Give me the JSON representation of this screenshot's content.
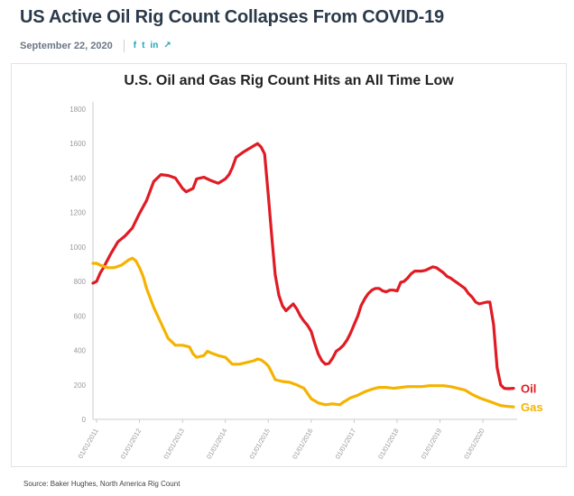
{
  "article": {
    "headline": "US Active Oil Rig Count Collapses From COVID-19",
    "date": "September 22, 2020",
    "share": [
      {
        "icon": "facebook-icon",
        "glyph": "f"
      },
      {
        "icon": "twitter-icon",
        "glyph": "t"
      },
      {
        "icon": "linkedin-icon",
        "glyph": "in"
      },
      {
        "icon": "link-icon",
        "glyph": "↗"
      }
    ],
    "accent_color": "#1aa9b8",
    "source": "Source: Baker Hughes, North America Rig Count"
  },
  "chart_data": {
    "type": "line",
    "title": "U.S. Oil and Gas Rig Count Hits an All Time Low",
    "xlabel": "",
    "ylabel": "",
    "ylim": [
      0,
      1800
    ],
    "yticks": [
      0,
      200,
      400,
      600,
      800,
      1000,
      1200,
      1400,
      1600,
      1800
    ],
    "xlim": [
      "2010-12-01",
      "2020-09-18"
    ],
    "xticks": [
      {
        "date": "2011-01-01",
        "label": "01/01/2011"
      },
      {
        "date": "2012-01-01",
        "label": "01/01/2012"
      },
      {
        "date": "2013-01-01",
        "label": "01/01/2013"
      },
      {
        "date": "2014-01-01",
        "label": "01/01/2014"
      },
      {
        "date": "2015-01-01",
        "label": "01/01/2015"
      },
      {
        "date": "2016-01-01",
        "label": "01/01/2016"
      },
      {
        "date": "2017-01-01",
        "label": "01/01/2017"
      },
      {
        "date": "2018-01-01",
        "label": "01/01/2018"
      },
      {
        "date": "2019-01-01",
        "label": "01/01/2019"
      },
      {
        "date": "2020-01-01",
        "label": "01/01/2020"
      }
    ],
    "grid": false,
    "legend": "end-of-line labels",
    "series": [
      {
        "name": "Oil",
        "color": "#e01b24",
        "points": [
          [
            "2010-12-01",
            790
          ],
          [
            "2011-01-01",
            800
          ],
          [
            "2011-02-01",
            850
          ],
          [
            "2011-03-01",
            880
          ],
          [
            "2011-05-01",
            960
          ],
          [
            "2011-07-01",
            1030
          ],
          [
            "2011-09-01",
            1065
          ],
          [
            "2011-11-01",
            1110
          ],
          [
            "2012-01-01",
            1195
          ],
          [
            "2012-03-01",
            1270
          ],
          [
            "2012-05-01",
            1380
          ],
          [
            "2012-07-01",
            1420
          ],
          [
            "2012-09-01",
            1415
          ],
          [
            "2012-11-01",
            1400
          ],
          [
            "2013-01-01",
            1340
          ],
          [
            "2013-02-01",
            1320
          ],
          [
            "2013-04-01",
            1340
          ],
          [
            "2013-05-01",
            1395
          ],
          [
            "2013-07-01",
            1405
          ],
          [
            "2013-09-01",
            1385
          ],
          [
            "2013-11-01",
            1370
          ],
          [
            "2014-01-01",
            1395
          ],
          [
            "2014-02-01",
            1420
          ],
          [
            "2014-03-01",
            1460
          ],
          [
            "2014-04-01",
            1520
          ],
          [
            "2014-06-01",
            1550
          ],
          [
            "2014-08-01",
            1575
          ],
          [
            "2014-10-01",
            1600
          ],
          [
            "2014-11-01",
            1580
          ],
          [
            "2014-12-01",
            1540
          ],
          [
            "2015-01-01",
            1300
          ],
          [
            "2015-02-01",
            1050
          ],
          [
            "2015-03-01",
            840
          ],
          [
            "2015-04-01",
            720
          ],
          [
            "2015-05-01",
            660
          ],
          [
            "2015-06-01",
            630
          ],
          [
            "2015-07-01",
            650
          ],
          [
            "2015-08-01",
            670
          ],
          [
            "2015-09-01",
            640
          ],
          [
            "2015-10-01",
            600
          ],
          [
            "2015-11-01",
            570
          ],
          [
            "2015-12-01",
            545
          ],
          [
            "2016-01-01",
            510
          ],
          [
            "2016-02-01",
            440
          ],
          [
            "2016-03-01",
            380
          ],
          [
            "2016-04-01",
            340
          ],
          [
            "2016-05-01",
            320
          ],
          [
            "2016-06-01",
            325
          ],
          [
            "2016-07-01",
            355
          ],
          [
            "2016-08-01",
            395
          ],
          [
            "2016-09-01",
            410
          ],
          [
            "2016-10-01",
            430
          ],
          [
            "2016-11-01",
            460
          ],
          [
            "2016-12-01",
            500
          ],
          [
            "2017-01-01",
            550
          ],
          [
            "2017-02-01",
            600
          ],
          [
            "2017-03-01",
            660
          ],
          [
            "2017-04-01",
            700
          ],
          [
            "2017-05-01",
            730
          ],
          [
            "2017-06-01",
            750
          ],
          [
            "2017-07-01",
            760
          ],
          [
            "2017-08-01",
            760
          ],
          [
            "2017-09-01",
            745
          ],
          [
            "2017-10-01",
            740
          ],
          [
            "2017-11-01",
            750
          ],
          [
            "2017-12-01",
            750
          ],
          [
            "2018-01-01",
            745
          ],
          [
            "2018-02-01",
            795
          ],
          [
            "2018-03-01",
            800
          ],
          [
            "2018-04-01",
            820
          ],
          [
            "2018-05-01",
            845
          ],
          [
            "2018-06-01",
            860
          ],
          [
            "2018-07-01",
            860
          ],
          [
            "2018-08-01",
            860
          ],
          [
            "2018-09-01",
            865
          ],
          [
            "2018-10-01",
            875
          ],
          [
            "2018-11-01",
            885
          ],
          [
            "2018-12-01",
            880
          ],
          [
            "2019-01-01",
            865
          ],
          [
            "2019-02-01",
            850
          ],
          [
            "2019-03-01",
            830
          ],
          [
            "2019-04-01",
            820
          ],
          [
            "2019-05-01",
            805
          ],
          [
            "2019-06-01",
            790
          ],
          [
            "2019-07-01",
            775
          ],
          [
            "2019-08-01",
            760
          ],
          [
            "2019-09-01",
            730
          ],
          [
            "2019-10-01",
            710
          ],
          [
            "2019-11-01",
            680
          ],
          [
            "2019-12-01",
            670
          ],
          [
            "2020-01-01",
            675
          ],
          [
            "2020-02-01",
            680
          ],
          [
            "2020-03-01",
            680
          ],
          [
            "2020-04-01",
            550
          ],
          [
            "2020-05-01",
            300
          ],
          [
            "2020-06-01",
            200
          ],
          [
            "2020-07-01",
            180
          ],
          [
            "2020-08-01",
            178
          ],
          [
            "2020-09-18",
            180
          ]
        ]
      },
      {
        "name": "Gas",
        "color": "#f5b300",
        "points": [
          [
            "2010-12-01",
            905
          ],
          [
            "2011-01-01",
            905
          ],
          [
            "2011-02-01",
            895
          ],
          [
            "2011-04-01",
            880
          ],
          [
            "2011-06-01",
            880
          ],
          [
            "2011-08-01",
            895
          ],
          [
            "2011-10-01",
            925
          ],
          [
            "2011-11-01",
            935
          ],
          [
            "2011-12-01",
            920
          ],
          [
            "2012-01-01",
            880
          ],
          [
            "2012-02-01",
            830
          ],
          [
            "2012-03-01",
            760
          ],
          [
            "2012-05-01",
            650
          ],
          [
            "2012-07-01",
            560
          ],
          [
            "2012-09-01",
            470
          ],
          [
            "2012-11-01",
            430
          ],
          [
            "2013-01-01",
            430
          ],
          [
            "2013-03-01",
            420
          ],
          [
            "2013-04-01",
            380
          ],
          [
            "2013-05-01",
            360
          ],
          [
            "2013-07-01",
            370
          ],
          [
            "2013-08-01",
            395
          ],
          [
            "2013-09-01",
            385
          ],
          [
            "2013-11-01",
            370
          ],
          [
            "2014-01-01",
            360
          ],
          [
            "2014-03-01",
            320
          ],
          [
            "2014-05-01",
            320
          ],
          [
            "2014-07-01",
            330
          ],
          [
            "2014-09-01",
            340
          ],
          [
            "2014-10-01",
            350
          ],
          [
            "2014-11-01",
            345
          ],
          [
            "2014-12-01",
            330
          ],
          [
            "2015-01-01",
            310
          ],
          [
            "2015-02-01",
            270
          ],
          [
            "2015-03-01",
            230
          ],
          [
            "2015-05-01",
            220
          ],
          [
            "2015-07-01",
            215
          ],
          [
            "2015-09-01",
            200
          ],
          [
            "2015-11-01",
            180
          ],
          [
            "2016-01-01",
            120
          ],
          [
            "2016-03-01",
            95
          ],
          [
            "2016-05-01",
            85
          ],
          [
            "2016-07-01",
            90
          ],
          [
            "2016-09-01",
            85
          ],
          [
            "2016-10-01",
            100
          ],
          [
            "2016-12-01",
            125
          ],
          [
            "2017-02-01",
            140
          ],
          [
            "2017-04-01",
            160
          ],
          [
            "2017-06-01",
            175
          ],
          [
            "2017-08-01",
            185
          ],
          [
            "2017-10-01",
            185
          ],
          [
            "2017-12-01",
            180
          ],
          [
            "2018-02-01",
            185
          ],
          [
            "2018-04-01",
            190
          ],
          [
            "2018-06-01",
            190
          ],
          [
            "2018-08-01",
            190
          ],
          [
            "2018-10-01",
            195
          ],
          [
            "2018-12-01",
            195
          ],
          [
            "2019-02-01",
            195
          ],
          [
            "2019-04-01",
            190
          ],
          [
            "2019-06-01",
            180
          ],
          [
            "2019-08-01",
            170
          ],
          [
            "2019-10-01",
            145
          ],
          [
            "2019-12-01",
            125
          ],
          [
            "2020-02-01",
            110
          ],
          [
            "2020-04-01",
            95
          ],
          [
            "2020-06-01",
            80
          ],
          [
            "2020-08-01",
            75
          ],
          [
            "2020-09-18",
            72
          ]
        ]
      }
    ]
  }
}
